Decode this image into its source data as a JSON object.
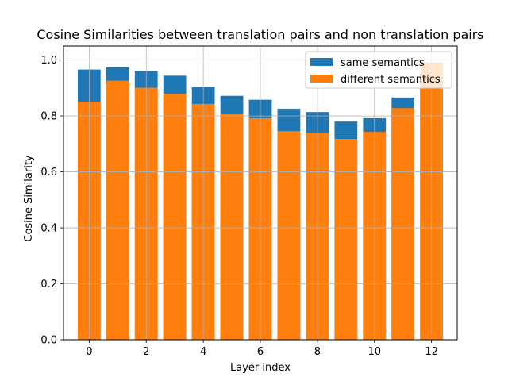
{
  "chart_data": {
    "type": "bar",
    "title": "Cosine Similarities between translation pairs and non translation pairs",
    "xlabel": "Layer index",
    "ylabel": "Cosine Similarity",
    "x": [
      0,
      1,
      2,
      3,
      4,
      5,
      6,
      7,
      8,
      9,
      10,
      11,
      12
    ],
    "series": [
      {
        "name": "same semantics",
        "color": "#1f77b4",
        "values": [
          0.966,
          0.974,
          0.961,
          0.944,
          0.905,
          0.872,
          0.858,
          0.826,
          0.814,
          0.78,
          0.792,
          0.866,
          0.991
        ]
      },
      {
        "name": "different semantics",
        "color": "#ff7f0e",
        "values": [
          0.851,
          0.926,
          0.901,
          0.879,
          0.843,
          0.806,
          0.792,
          0.746,
          0.738,
          0.718,
          0.743,
          0.828,
          0.991
        ]
      }
    ],
    "xlim": [
      -0.9,
      12.9
    ],
    "ylim": [
      0.0,
      1.05
    ],
    "xticks": [
      0,
      2,
      4,
      6,
      8,
      10,
      12
    ],
    "yticks": [
      0.0,
      0.2,
      0.4,
      0.6,
      0.8,
      1.0
    ],
    "ytick_labels": [
      "0.0",
      "0.2",
      "0.4",
      "0.6",
      "0.8",
      "1.0"
    ],
    "bar_width": 0.8,
    "grid": true,
    "legend_position": "upper right"
  }
}
